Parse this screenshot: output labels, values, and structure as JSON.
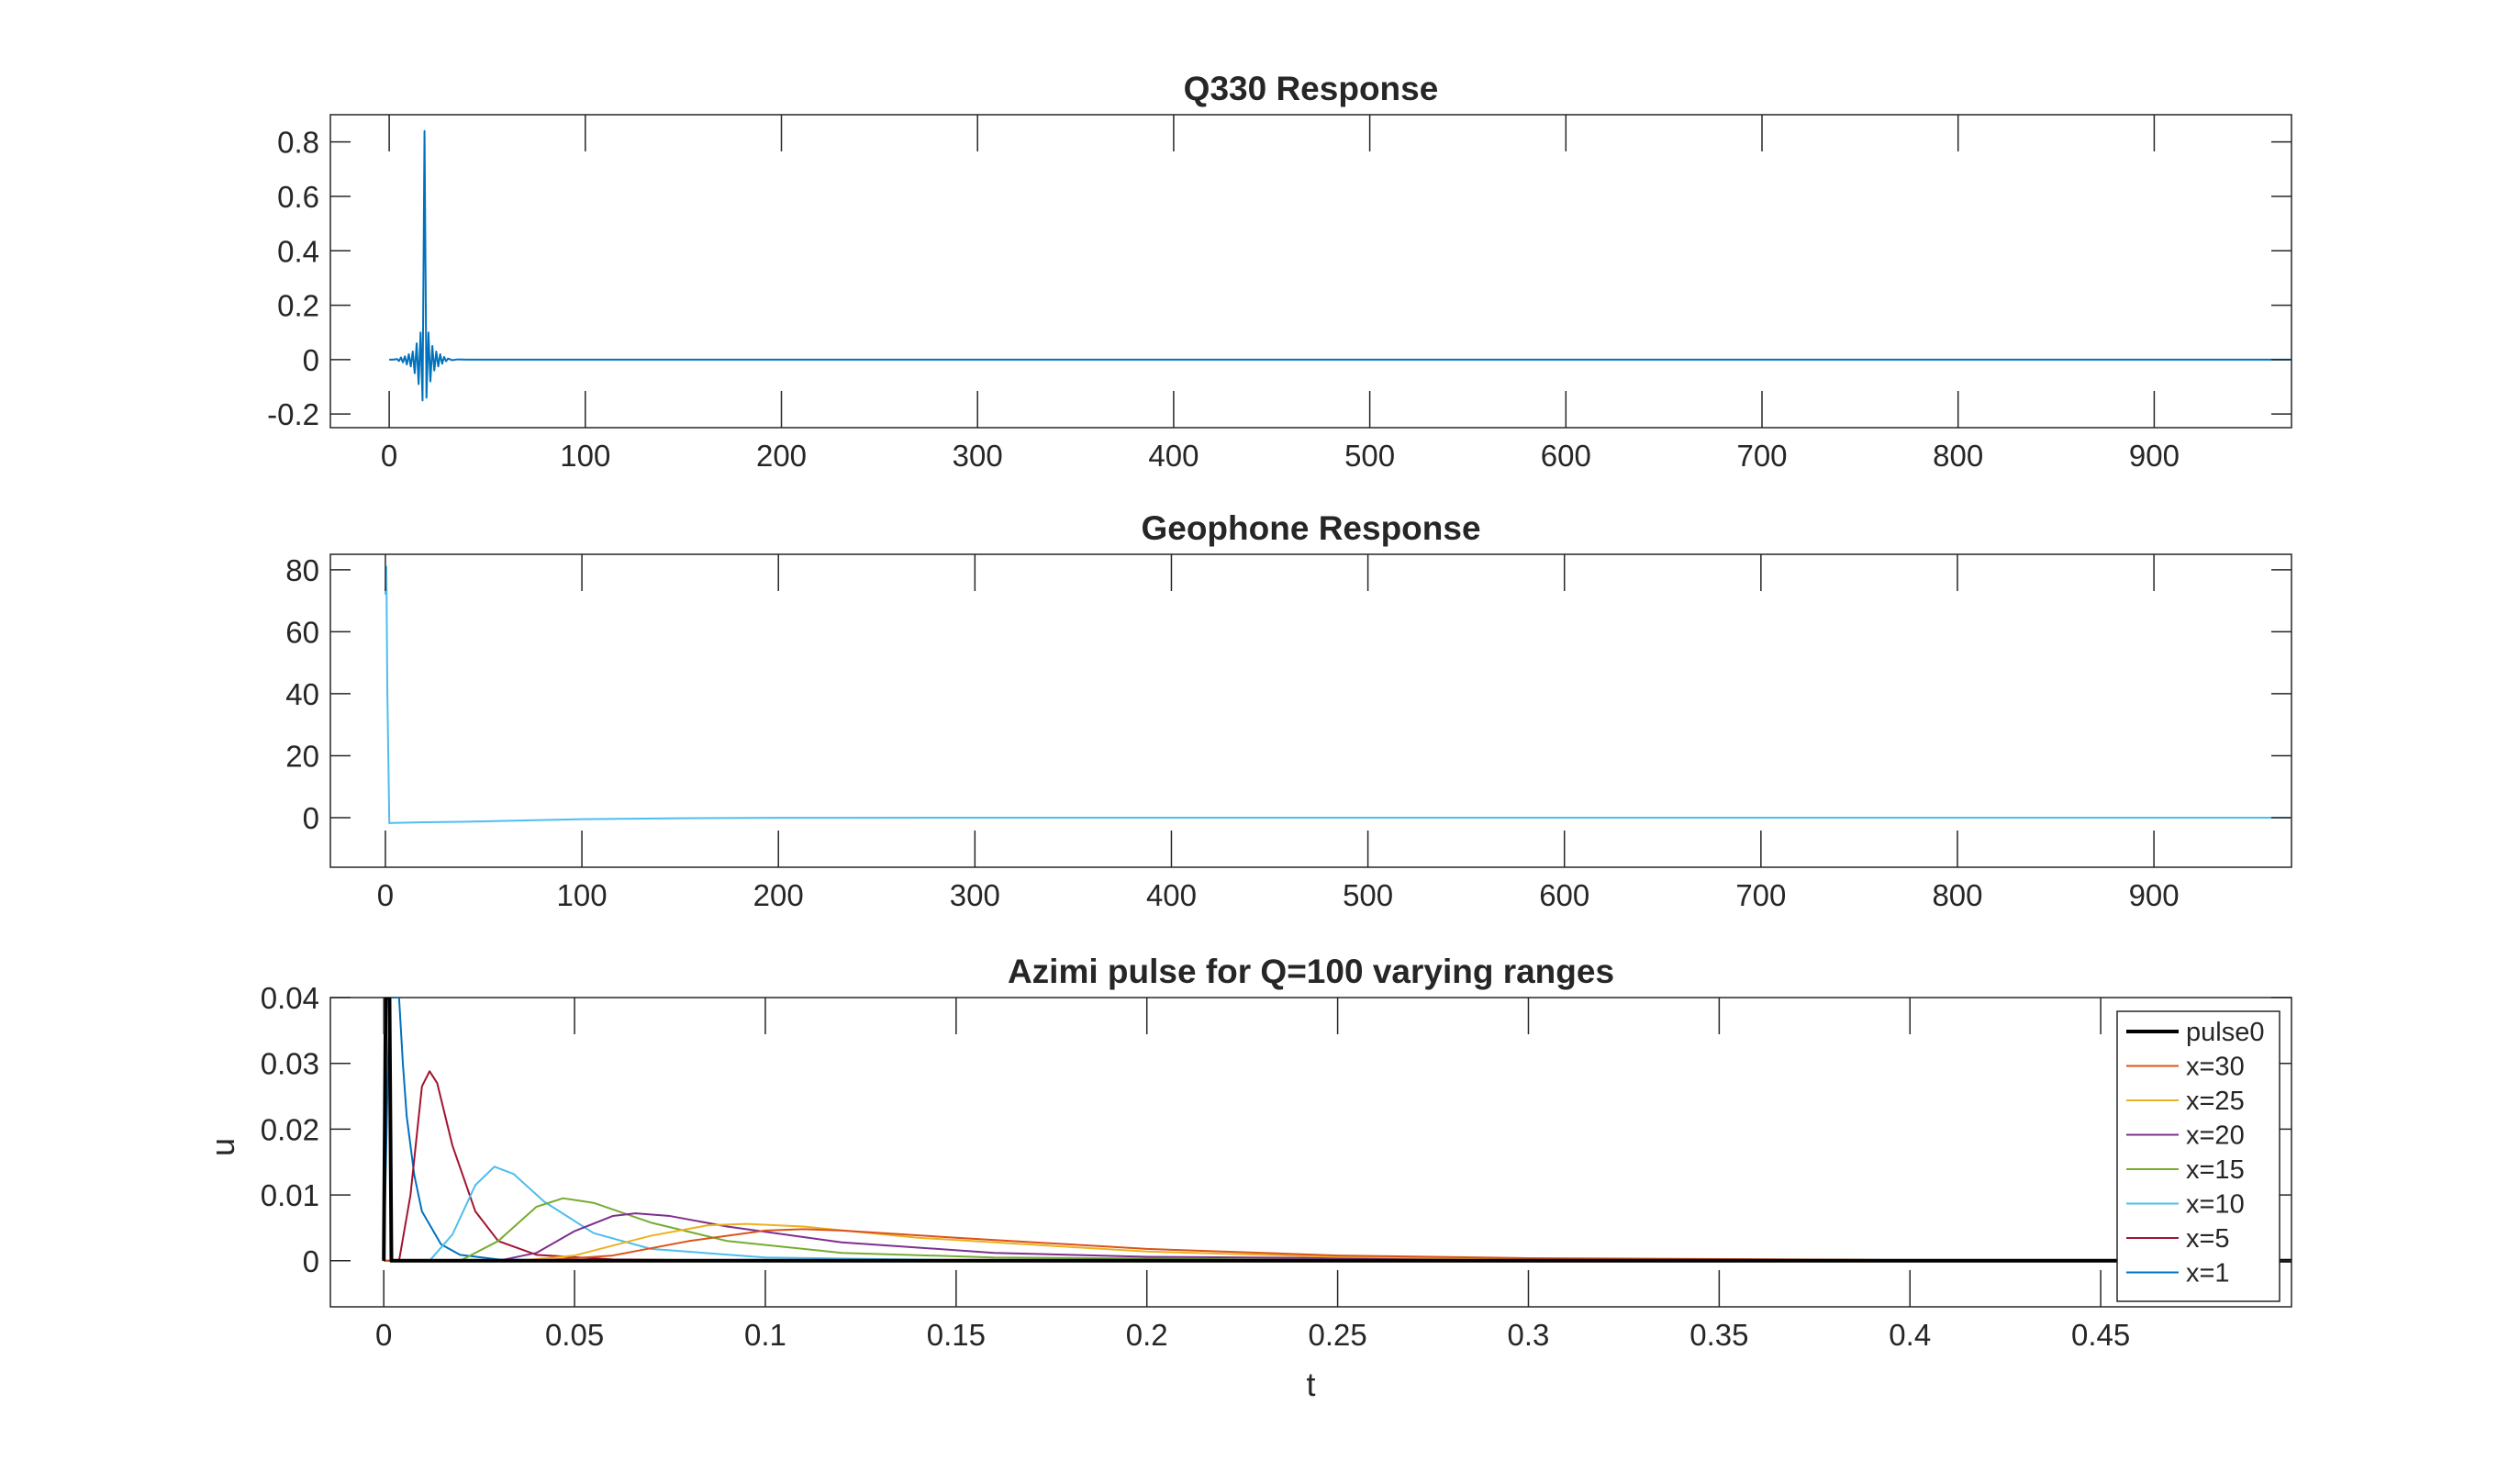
{
  "chart_data": [
    {
      "type": "line",
      "title": "Q330 Response",
      "xlabel": "",
      "ylabel": "",
      "xlim": [
        -30,
        970
      ],
      "ylim": [
        -0.25,
        0.9
      ],
      "xticks": [
        0,
        100,
        200,
        300,
        400,
        500,
        600,
        700,
        800,
        900
      ],
      "xtick_labels": [
        "0",
        "100",
        "200",
        "300",
        "400",
        "500",
        "600",
        "700",
        "800",
        "900"
      ],
      "yticks": [
        -0.2,
        0,
        0.2,
        0.4,
        0.6,
        0.8
      ],
      "ytick_labels": [
        "-0.2",
        "0",
        "0.2",
        "0.4",
        "0.6",
        "0.8"
      ],
      "grid": false,
      "series": [
        {
          "color": "#0072BD",
          "x": [
            0,
            2,
            4,
            5,
            6,
            7,
            8,
            9,
            10,
            11,
            12,
            13,
            14,
            15,
            16,
            17,
            18,
            19,
            20,
            21,
            22,
            23,
            24,
            25,
            26,
            27,
            28,
            29,
            30,
            32,
            35,
            40,
            50,
            100,
            300,
            500,
            700,
            970
          ],
          "y": [
            0,
            0,
            0.002,
            -0.005,
            0.008,
            -0.01,
            0.012,
            -0.018,
            0.02,
            -0.025,
            0.03,
            -0.05,
            0.06,
            -0.09,
            0.1,
            -0.15,
            0.84,
            -0.14,
            0.1,
            -0.08,
            0.05,
            -0.04,
            0.03,
            -0.025,
            0.02,
            -0.015,
            0.01,
            -0.006,
            0.004,
            -0.002,
            0.001,
            0,
            0,
            0,
            0,
            0,
            0,
            0
          ]
        }
      ]
    },
    {
      "type": "line",
      "title": "Geophone Response",
      "xlabel": "",
      "ylabel": "",
      "xlim": [
        -28,
        970
      ],
      "ylim": [
        -16,
        85
      ],
      "xticks": [
        0,
        100,
        200,
        300,
        400,
        500,
        600,
        700,
        800,
        900
      ],
      "xtick_labels": [
        "0",
        "100",
        "200",
        "300",
        "400",
        "500",
        "600",
        "700",
        "800",
        "900"
      ],
      "yticks": [
        0,
        20,
        40,
        60,
        80
      ],
      "ytick_labels": [
        "0",
        "20",
        "40",
        "60",
        "80"
      ],
      "grid": false,
      "series": [
        {
          "color": "#4DBEEE",
          "x": [
            0,
            0.5,
            1,
            2,
            3,
            20,
            50,
            100,
            150,
            200,
            300,
            500,
            700,
            970
          ],
          "y": [
            72,
            81,
            40,
            -1.8,
            -1.7,
            -1.5,
            -1.2,
            -0.5,
            -0.2,
            -0.05,
            0,
            0,
            0,
            0
          ]
        }
      ]
    },
    {
      "type": "line",
      "title": "Azimi pulse for Q=100 varying ranges",
      "xlabel": "t",
      "ylabel": "u",
      "xlim": [
        -0.014,
        0.5
      ],
      "ylim": [
        -0.007,
        0.04
      ],
      "xticks": [
        0,
        0.05,
        0.1,
        0.15,
        0.2,
        0.25,
        0.3,
        0.35,
        0.4,
        0.45
      ],
      "xtick_labels": [
        "0",
        "0.05",
        "0.1",
        "0.15",
        "0.2",
        "0.25",
        "0.3",
        "0.35",
        "0.4",
        "0.45"
      ],
      "yticks": [
        0,
        0.01,
        0.02,
        0.03,
        0.04
      ],
      "ytick_labels": [
        "0",
        "0.01",
        "0.02",
        "0.03",
        "0.04"
      ],
      "grid": false,
      "legend_position": "top-right",
      "series": [
        {
          "name": "pulse0",
          "color": "#000000",
          "width": 4,
          "x": [
            0,
            0.0005,
            0.001,
            0.0015,
            0.002,
            0.003,
            0.5
          ],
          "y": [
            0,
            0.04,
            0.04,
            0.04,
            0,
            0,
            0
          ]
        },
        {
          "name": "x=30",
          "color": "#D95319",
          "width": 2,
          "x": [
            0,
            0.04,
            0.06,
            0.08,
            0.1,
            0.11,
            0.12,
            0.15,
            0.2,
            0.25,
            0.3,
            0.4,
            0.5
          ],
          "y": [
            0,
            0,
            0.0008,
            0.003,
            0.0046,
            0.0048,
            0.0046,
            0.0035,
            0.0018,
            0.0008,
            0.0004,
            0.0001,
            0
          ]
        },
        {
          "name": "x=25",
          "color": "#EDB120",
          "width": 2,
          "x": [
            0,
            0.035,
            0.05,
            0.07,
            0.085,
            0.095,
            0.11,
            0.14,
            0.2,
            0.25,
            0.3,
            0.4,
            0.5
          ],
          "y": [
            0,
            0,
            0.0008,
            0.0038,
            0.0054,
            0.0056,
            0.0052,
            0.0035,
            0.0014,
            0.0006,
            0.0003,
            0.0001,
            0
          ]
        },
        {
          "name": "x=20",
          "color": "#7E2F8E",
          "width": 2,
          "x": [
            0,
            0.03,
            0.04,
            0.05,
            0.06,
            0.066,
            0.075,
            0.09,
            0.12,
            0.16,
            0.2,
            0.3,
            0.5
          ],
          "y": [
            0,
            0,
            0.0012,
            0.0045,
            0.0068,
            0.0072,
            0.0068,
            0.0052,
            0.0028,
            0.0012,
            0.0006,
            0.0002,
            0
          ]
        },
        {
          "name": "x=15",
          "color": "#77AC30",
          "width": 2,
          "x": [
            0,
            0.02,
            0.03,
            0.04,
            0.047,
            0.055,
            0.07,
            0.09,
            0.12,
            0.16,
            0.25,
            0.5
          ],
          "y": [
            0,
            0,
            0.003,
            0.0082,
            0.0095,
            0.0088,
            0.0058,
            0.003,
            0.0012,
            0.0005,
            0.0001,
            0
          ]
        },
        {
          "name": "x=10",
          "color": "#4DBEEE",
          "width": 2,
          "x": [
            0,
            0.012,
            0.018,
            0.024,
            0.029,
            0.034,
            0.042,
            0.055,
            0.07,
            0.1,
            0.15,
            0.5
          ],
          "y": [
            0,
            0,
            0.004,
            0.0115,
            0.0143,
            0.0132,
            0.009,
            0.0042,
            0.0018,
            0.0005,
            0.0001,
            0
          ]
        },
        {
          "name": "x=5",
          "color": "#A2142F",
          "width": 2,
          "x": [
            0,
            0.004,
            0.007,
            0.01,
            0.012,
            0.014,
            0.018,
            0.024,
            0.03,
            0.04,
            0.06,
            0.1,
            0.5
          ],
          "y": [
            0,
            0,
            0.01,
            0.0265,
            0.0288,
            0.027,
            0.0175,
            0.0075,
            0.003,
            0.0009,
            0.0002,
            0,
            0
          ]
        },
        {
          "name": "x=1",
          "color": "#0072BD",
          "width": 2,
          "x": [
            0,
            0.0015,
            0.003,
            0.004,
            0.005,
            0.006,
            0.008,
            0.01,
            0.015,
            0.02,
            0.03,
            0.05,
            0.5
          ],
          "y": [
            0,
            0.04,
            0.04,
            0.04,
            0.03,
            0.022,
            0.013,
            0.0075,
            0.0025,
            0.0009,
            0.0002,
            0,
            0
          ]
        }
      ]
    }
  ]
}
